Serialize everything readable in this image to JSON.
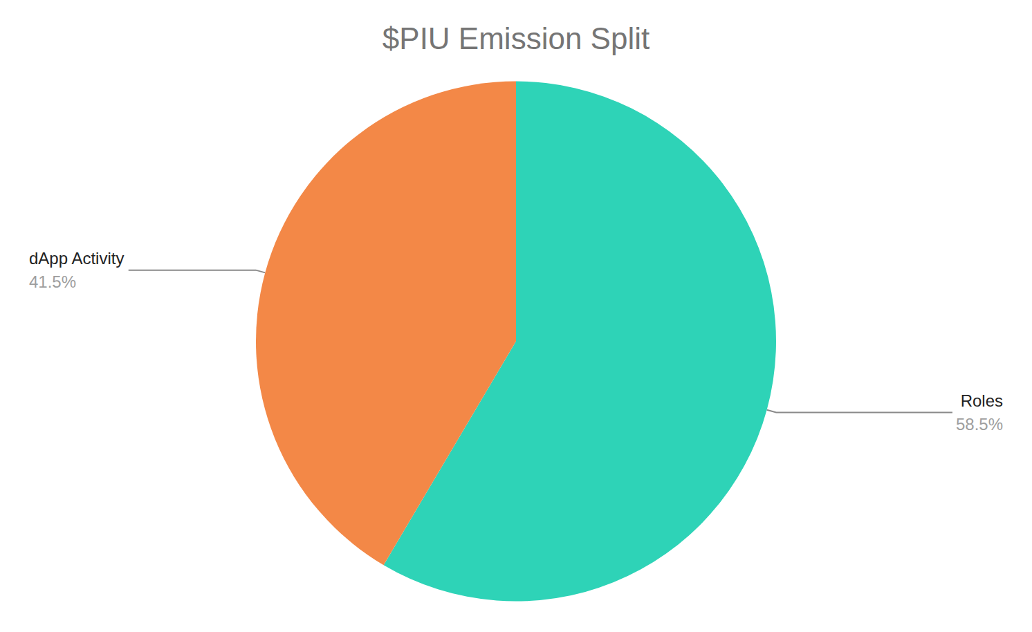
{
  "chart_data": {
    "type": "pie",
    "title": "$PIU Emission Split",
    "categories": [
      "Roles",
      "dApp Activity"
    ],
    "values": [
      58.5,
      41.5
    ],
    "value_labels": [
      "58.5%",
      "41.5%"
    ],
    "colors": [
      "#2ed3b7",
      "#f38847"
    ]
  }
}
